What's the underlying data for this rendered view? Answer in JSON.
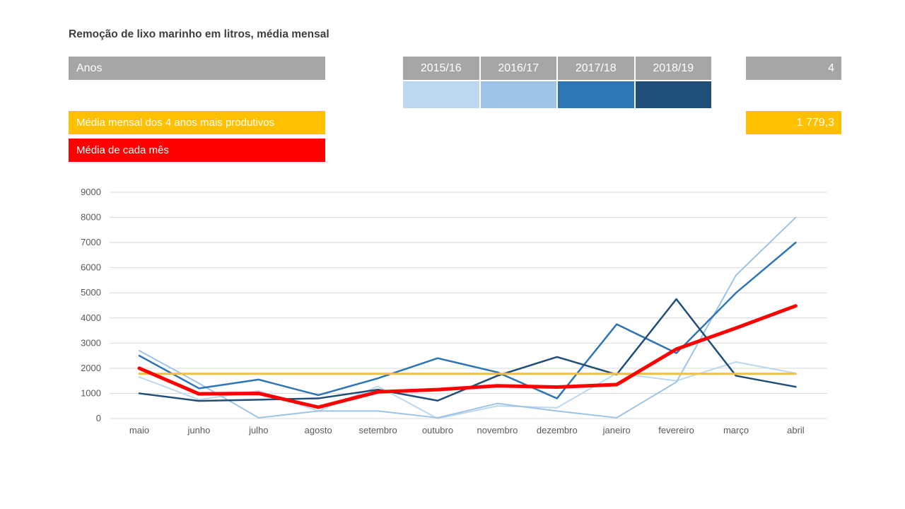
{
  "title": "Remoção de lixo marinho em litros, média mensal",
  "slicer": {
    "label": "Anos",
    "selected_count": "4",
    "years": [
      {
        "label": "2015/16",
        "color": "#BDD7EE"
      },
      {
        "label": "2016/17",
        "color": "#9DC3E6"
      },
      {
        "label": "2017/18",
        "color": "#2E75B6"
      },
      {
        "label": "2018/19",
        "color": "#1F4E79"
      }
    ]
  },
  "legend": {
    "avg4_label": "Média mensal dos 4 anos mais produtivos",
    "avg4_value": "1 779,3",
    "avg4_color": "#FFC000",
    "monthly_avg_label": "Média de cada mês",
    "monthly_avg_color": "#FF0000"
  },
  "chart_data": {
    "type": "line",
    "categories": [
      "maio",
      "junho",
      "julho",
      "agosto",
      "setembro",
      "outubro",
      "novembro",
      "dezembro",
      "janeiro",
      "fevereiro",
      "março",
      "abril"
    ],
    "ylim": [
      0,
      9000
    ],
    "ytick_step": 1000,
    "grid": true,
    "legend_position": "none",
    "series": [
      {
        "name": "2015/16",
        "color": "#BDD7EE",
        "width": 2,
        "values": [
          1650,
          750,
          1100,
          300,
          1280,
          0,
          500,
          430,
          1800,
          1500,
          2250,
          1800
        ]
      },
      {
        "name": "2016/17",
        "color": "#9DC3E6",
        "width": 2,
        "values": [
          2700,
          1400,
          30,
          300,
          300,
          30,
          600,
          300,
          30,
          1450,
          5700,
          8000
        ]
      },
      {
        "name": "2017/18",
        "color": "#2E75B6",
        "width": 2.5,
        "values": [
          2500,
          1200,
          1550,
          930,
          1600,
          2400,
          1840,
          800,
          3750,
          2600,
          5000,
          7000
        ]
      },
      {
        "name": "2018/19",
        "color": "#1F4E79",
        "width": 2.5,
        "values": [
          1000,
          700,
          750,
          800,
          1150,
          710,
          1700,
          2450,
          1750,
          4750,
          1700,
          1260
        ]
      },
      {
        "name": "Média mensal dos 4 anos mais produtivos",
        "color": "#EFC13B",
        "width": 3,
        "constant": 1779.3
      },
      {
        "name": "Média de cada mês",
        "color": "#FF0000",
        "width": 5,
        "values": [
          2000,
          980,
          1000,
          450,
          1060,
          1150,
          1300,
          1250,
          1350,
          2760,
          3600,
          4480
        ]
      }
    ]
  }
}
